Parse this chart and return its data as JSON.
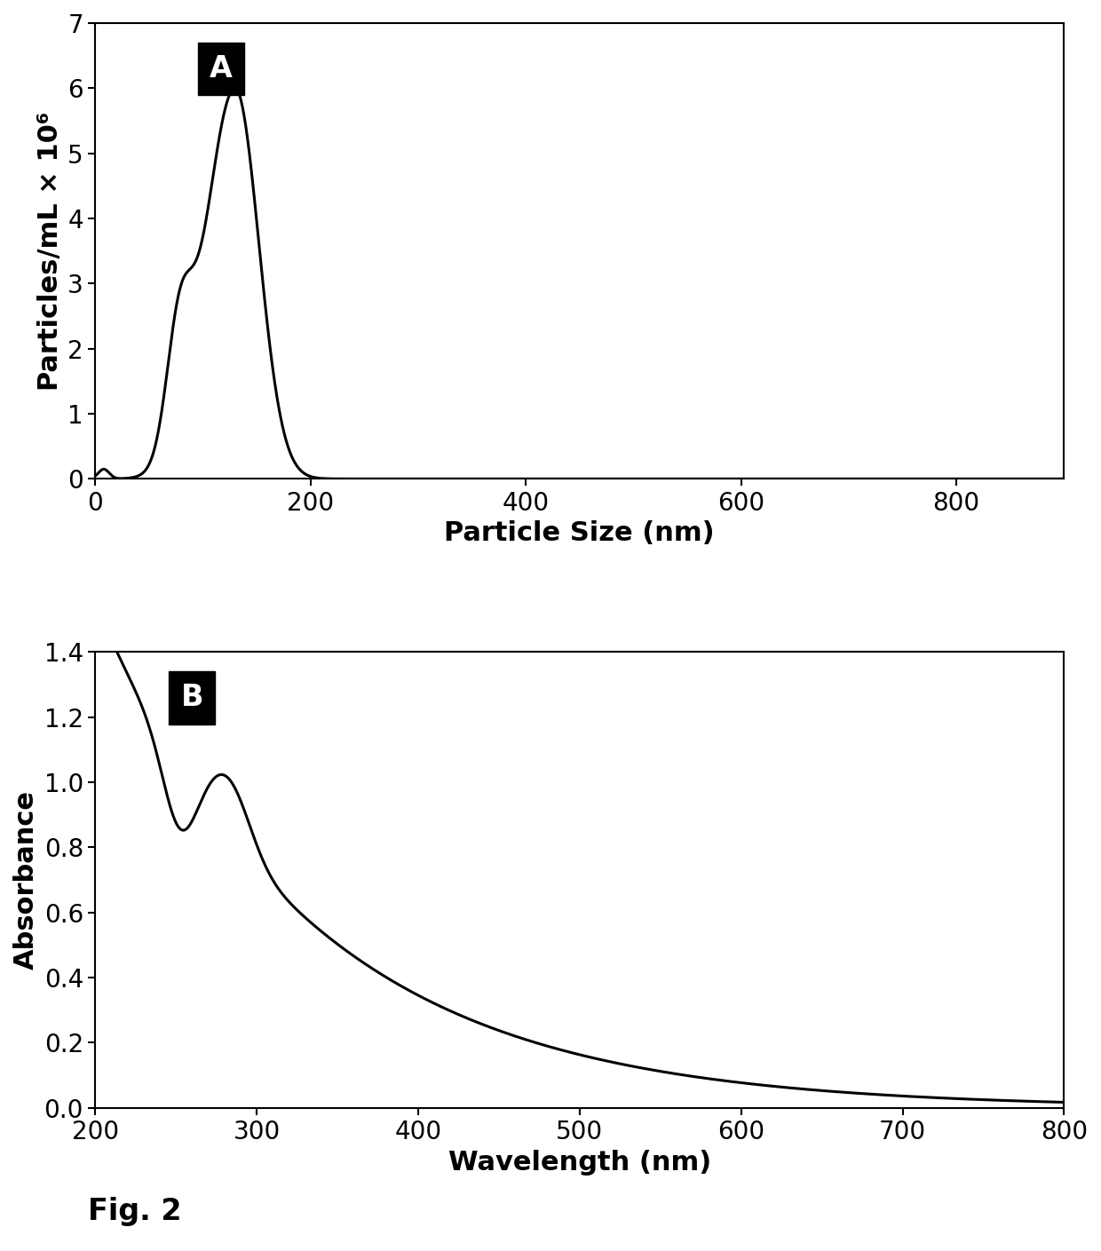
{
  "panel_A": {
    "label": "A",
    "xlabel": "Particle Size (nm)",
    "ylabel": "Particles/mL × 10⁶",
    "xlim": [
      0,
      900
    ],
    "ylim": [
      0,
      7
    ],
    "xticks": [
      0,
      200,
      400,
      600,
      800
    ],
    "yticks": [
      0,
      1,
      2,
      3,
      4,
      5,
      6,
      7
    ]
  },
  "panel_B": {
    "label": "B",
    "xlabel": "Wavelength (nm)",
    "ylabel": "Absorbance",
    "xlim": [
      200,
      800
    ],
    "ylim": [
      0,
      1.4
    ],
    "xticks": [
      200,
      300,
      400,
      500,
      600,
      700,
      800
    ],
    "yticks": [
      0,
      0.2,
      0.4,
      0.6,
      0.8,
      1.0,
      1.2,
      1.4
    ]
  },
  "fig_label": "Fig. 2",
  "line_color": "#000000",
  "line_width": 2.2,
  "label_box_color": "#000000",
  "label_text_color": "#ffffff",
  "label_fontsize": 24,
  "axis_fontsize": 22,
  "tick_fontsize": 20,
  "fig_label_fontsize": 24,
  "background_color": "#ffffff"
}
